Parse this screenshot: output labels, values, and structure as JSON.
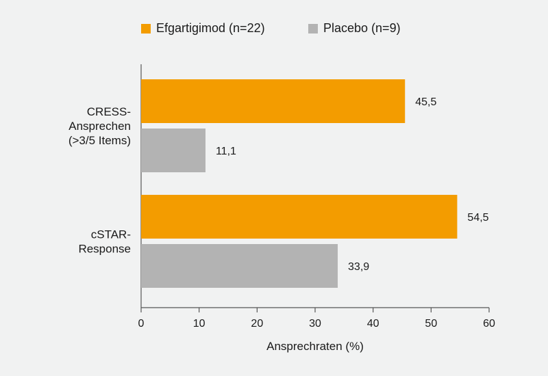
{
  "chart_data": {
    "type": "bar",
    "orientation": "horizontal",
    "categories": [
      [
        "CRESS-",
        "Ansprechen",
        "(>3/5 Items)"
      ],
      [
        "cSTAR-",
        "Response"
      ]
    ],
    "series": [
      {
        "name": "Efgartigimod (n=22)",
        "color": "#f39c00",
        "values": [
          45.5,
          54.5
        ],
        "labels": [
          "45,5",
          "54,5"
        ]
      },
      {
        "name": "Placebo (n=9)",
        "color": "#b3b3b3",
        "values": [
          11.1,
          33.9
        ],
        "labels": [
          "11,1",
          "33,9"
        ]
      }
    ],
    "xlabel": "Ansprechraten (%)",
    "xlim": [
      0,
      60
    ],
    "xticks": [
      0,
      10,
      20,
      30,
      40,
      50,
      60
    ],
    "grid": false,
    "legend_position": "top"
  }
}
